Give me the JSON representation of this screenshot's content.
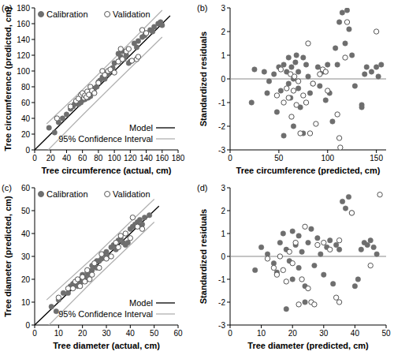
{
  "chart_data": [
    {
      "type": "scatter",
      "panel_label": "(a)",
      "x_label": "Tree circumference (actual, cm)",
      "y_label": "Tree circumference (predicted, cm)",
      "xlim": [
        0,
        180
      ],
      "ylim": [
        0,
        180
      ],
      "xticks": [
        0,
        20,
        40,
        60,
        80,
        100,
        120,
        140,
        160,
        180
      ],
      "yticks": [
        0,
        20,
        40,
        60,
        80,
        100,
        120,
        140,
        160,
        180
      ],
      "legend": "upper left",
      "series": [
        {
          "name": "Calibration",
          "type": "scatter",
          "marker": "filled-circle",
          "color": "#6e6e6e",
          "x": [
            18,
            25,
            30,
            35,
            40,
            45,
            48,
            50,
            52,
            55,
            56,
            58,
            60,
            60,
            62,
            63,
            65,
            67,
            68,
            70,
            72,
            75,
            78,
            80,
            82,
            85,
            88,
            90,
            92,
            95,
            98,
            100,
            105,
            108,
            112,
            115,
            118,
            120,
            125,
            128,
            130,
            135,
            138,
            140,
            145,
            148,
            150,
            155,
            158,
            160,
            105,
            110
          ],
          "values": [
            28,
            22,
            35,
            40,
            45,
            52,
            55,
            58,
            60,
            58,
            62,
            60,
            65,
            63,
            68,
            64,
            70,
            66,
            72,
            68,
            74,
            78,
            80,
            86,
            88,
            92,
            90,
            98,
            96,
            100,
            104,
            110,
            112,
            118,
            115,
            120,
            110,
            112,
            135,
            130,
            138,
            143,
            145,
            148,
            152,
            150,
            156,
            160,
            162,
            158,
            122,
            125
          ]
        },
        {
          "name": "Validation",
          "type": "scatter",
          "marker": "open-circle",
          "color": "#555555",
          "x": [
            28,
            45,
            52,
            55,
            58,
            60,
            62,
            63,
            65,
            66,
            68,
            70,
            72,
            75,
            80,
            85,
            88,
            92,
            95,
            100,
            105,
            108,
            110,
            115,
            118,
            122,
            128,
            130,
            135,
            140
          ],
          "values": [
            40,
            55,
            62,
            65,
            70,
            72,
            66,
            69,
            67,
            74,
            70,
            80,
            75,
            72,
            85,
            100,
            95,
            100,
            102,
            98,
            112,
            128,
            115,
            125,
            128,
            113,
            115,
            118,
            152,
            148
          ]
        },
        {
          "name": "Model",
          "type": "line",
          "line_style": "solid",
          "color": "#000000",
          "x": [
            0,
            170
          ],
          "values": [
            0,
            170
          ]
        },
        {
          "name": "95% Confidence Interval",
          "type": "line",
          "line_style": "solid",
          "color": "#b0b0b0",
          "x": [
            15,
            60,
            100,
            160
          ],
          "values": [
            33,
            76,
            116,
            177
          ],
          "lower": [
            -2,
            44,
            84,
            143
          ]
        }
      ]
    },
    {
      "type": "scatter",
      "panel_label": "(b)",
      "x_label": "Tree circumference (predicted, cm)",
      "y_label": "Standardized residuals",
      "xlim": [
        0,
        160
      ],
      "ylim": [
        -3,
        3
      ],
      "xticks": [
        0,
        50,
        100,
        150
      ],
      "yticks": [
        -3,
        -2,
        -1,
        0,
        1,
        2,
        3
      ],
      "hline": 0,
      "series": [
        {
          "type": "scatter",
          "marker": "filled-circle",
          "color": "#6e6e6e",
          "x": [
            22,
            25,
            35,
            38,
            40,
            45,
            48,
            50,
            52,
            55,
            55,
            58,
            60,
            60,
            62,
            63,
            65,
            65,
            67,
            68,
            70,
            70,
            72,
            75,
            75,
            78,
            80,
            82,
            85,
            90,
            92,
            95,
            98,
            100,
            102,
            105,
            108,
            110,
            112,
            115,
            118,
            120,
            122,
            125,
            128,
            135,
            138,
            140,
            145,
            150,
            152,
            155,
            135
          ],
          "values": [
            -1.0,
            0.4,
            0.3,
            -0.6,
            -0.1,
            0.2,
            -1.4,
            0.5,
            -0.5,
            -2.4,
            0.6,
            0.3,
            -0.2,
            0.9,
            -0.8,
            0.5,
            0.0,
            -2.0,
            0.7,
            1.0,
            0.3,
            -0.4,
            -1.2,
            0.9,
            -2.3,
            0.6,
            0.1,
            -0.6,
            -0.2,
            0.5,
            -0.3,
            0.3,
            -0.9,
            0.6,
            -0.6,
            -1.8,
            1.3,
            0.6,
            2.4,
            2.8,
            1.5,
            2.9,
            2.1,
            1.0,
            -0.3,
            -1.1,
            0.2,
            0.5,
            0.3,
            0.5,
            0.1,
            0.6,
            -1.2
          ]
        },
        {
          "type": "scatter",
          "marker": "open-circle",
          "color": "#555555",
          "x": [
            48,
            52,
            55,
            58,
            60,
            62,
            63,
            65,
            66,
            68,
            70,
            72,
            75,
            78,
            80,
            82,
            85,
            88,
            92,
            95,
            98,
            100,
            110,
            112,
            113,
            118,
            120,
            150
          ],
          "values": [
            -0.7,
            0.4,
            -1.0,
            -0.4,
            -0.8,
            0.2,
            -1.6,
            -0.5,
            0.1,
            -1.1,
            -0.1,
            -2.3,
            -0.7,
            -1.0,
            1.5,
            -2.3,
            -0.2,
            -1.9,
            0.2,
            0.4,
            0.3,
            -0.5,
            -1.5,
            -2.5,
            -2.9,
            0.9,
            2.4,
            2.0
          ]
        }
      ]
    },
    {
      "type": "scatter",
      "panel_label": "(c)",
      "x_label": "Tree diameter (actual, cm)",
      "y_label": "Tree diameter (predicted, cm)",
      "xlim": [
        0,
        60
      ],
      "ylim": [
        0,
        60
      ],
      "xticks": [
        0,
        10,
        20,
        30,
        40,
        50,
        60
      ],
      "yticks": [
        0,
        10,
        20,
        30,
        40,
        50,
        60
      ],
      "legend": "upper left",
      "series": [
        {
          "name": "Calibration",
          "type": "scatter",
          "marker": "filled-circle",
          "color": "#6e6e6e",
          "x": [
            7,
            9,
            10,
            12,
            14,
            15,
            16,
            17,
            18,
            18,
            19,
            20,
            20,
            21,
            22,
            23,
            24,
            25,
            26,
            27,
            28,
            29,
            30,
            31,
            32,
            33,
            34,
            35,
            36,
            37,
            38,
            39,
            40,
            41,
            42,
            43,
            44,
            45,
            46,
            48,
            26,
            22,
            19,
            24
          ],
          "values": [
            8,
            6,
            11,
            14,
            14,
            17,
            18,
            18,
            19,
            17,
            20,
            19,
            22,
            21,
            23,
            22,
            24,
            26,
            25,
            28,
            29,
            31,
            32,
            30,
            34,
            35,
            33,
            37,
            38,
            36,
            35,
            36,
            42,
            43,
            44,
            45,
            46,
            44,
            47,
            48,
            28,
            20,
            18,
            26
          ]
        },
        {
          "name": "Validation",
          "type": "scatter",
          "marker": "open-circle",
          "color": "#555555",
          "x": [
            10,
            14,
            16,
            17,
            18,
            19,
            20,
            21,
            22,
            23,
            24,
            25,
            27,
            28,
            30,
            32,
            34,
            35,
            36,
            38,
            40,
            41,
            43,
            45
          ],
          "values": [
            12,
            16,
            16,
            19,
            20,
            17,
            21,
            19,
            24,
            20,
            22,
            27,
            25,
            31,
            29,
            30,
            36,
            34,
            39,
            40,
            38,
            47,
            43,
            42
          ]
        },
        {
          "name": "Model",
          "type": "line",
          "line_style": "solid",
          "color": "#000000",
          "x": [
            0,
            52
          ],
          "values": [
            0,
            52
          ]
        },
        {
          "name": "95% Confidence Interval",
          "type": "line",
          "line_style": "solid",
          "color": "#b0b0b0",
          "x": [
            5,
            25,
            50
          ],
          "values": [
            11,
            30,
            55
          ],
          "lower": [
            -1,
            20,
            45
          ]
        }
      ]
    },
    {
      "type": "scatter",
      "panel_label": "(d)",
      "x_label": "Tree diameter (predicted, cm)",
      "y_label": "Standardized residuals",
      "xlim": [
        0,
        50
      ],
      "ylim": [
        -3,
        3
      ],
      "xticks": [
        0,
        10,
        20,
        30,
        40,
        50
      ],
      "yticks": [
        -3,
        -2,
        -1,
        0,
        1,
        2,
        3
      ],
      "hline": 0,
      "series": [
        {
          "type": "scatter",
          "marker": "filled-circle",
          "color": "#6e6e6e",
          "x": [
            8,
            10,
            12,
            14,
            15,
            16,
            17,
            18,
            18,
            19,
            20,
            20,
            21,
            22,
            22,
            23,
            24,
            25,
            26,
            27,
            28,
            29,
            30,
            31,
            32,
            33,
            34,
            35,
            36,
            37,
            38,
            40,
            41,
            42,
            43,
            44,
            45,
            46,
            47,
            39,
            24
          ],
          "values": [
            -0.6,
            0.4,
            0.1,
            -0.3,
            -0.7,
            0.6,
            1.0,
            -2.3,
            0.3,
            -0.2,
            1.1,
            -1.0,
            0.5,
            0.9,
            -0.5,
            0.2,
            -1.3,
            0.6,
            1.2,
            -0.4,
            0.8,
            0.1,
            -0.8,
            0.4,
            0.7,
            -1.2,
            0.5,
            0.3,
            2.4,
            2.1,
            2.6,
            -1.3,
            -1.0,
            0.3,
            0.6,
            0.5,
            0.7,
            0.4,
            0.1,
            1.9,
            -2.0
          ]
        },
        {
          "type": "scatter",
          "marker": "open-circle",
          "color": "#555555",
          "x": [
            12,
            14,
            15,
            16,
            17,
            18,
            19,
            20,
            21,
            22,
            23,
            24,
            25,
            26,
            27,
            28,
            30,
            32,
            34,
            35,
            35,
            39,
            45,
            48
          ],
          "values": [
            -0.1,
            -0.5,
            -0.8,
            0.0,
            -0.6,
            -1.1,
            0.2,
            -0.3,
            0.6,
            -2.1,
            -1.0,
            1.3,
            -1.4,
            -2.0,
            -2.1,
            0.5,
            0.6,
            0.3,
            -1.8,
            -2.0,
            0.7,
            1.9,
            -0.4,
            2.7
          ]
        }
      ]
    }
  ]
}
